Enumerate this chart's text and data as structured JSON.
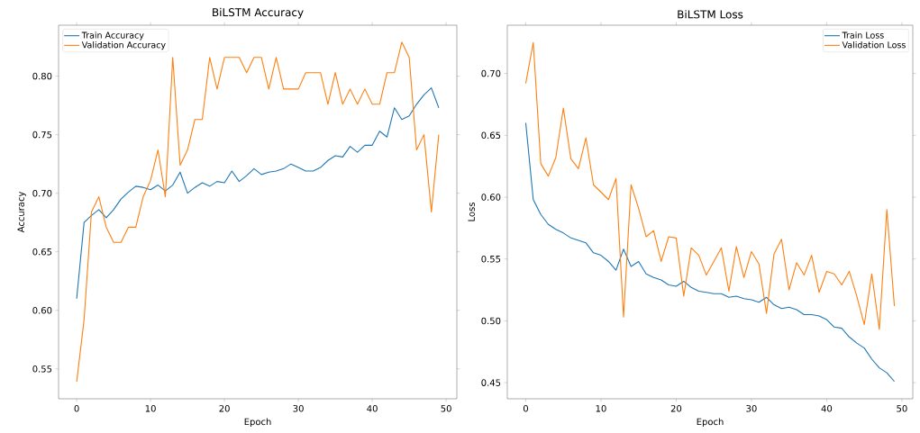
{
  "chart_data": [
    {
      "type": "line",
      "title": "BiLSTM Accuracy",
      "xlabel": "Epoch",
      "ylabel": "Accuracy",
      "legend": "top left",
      "grid": false,
      "x": [
        0,
        1,
        2,
        3,
        4,
        5,
        6,
        7,
        8,
        9,
        10,
        11,
        12,
        13,
        14,
        15,
        16,
        17,
        18,
        19,
        20,
        21,
        22,
        23,
        24,
        25,
        26,
        27,
        28,
        29,
        30,
        31,
        32,
        33,
        34,
        35,
        36,
        37,
        38,
        39,
        40,
        41,
        42,
        43,
        44,
        45,
        46,
        47,
        48,
        49
      ],
      "xlim": [
        -2.45,
        51.45
      ],
      "ylim": [
        0.5245,
        0.8435
      ],
      "xticks": [
        0,
        10,
        20,
        30,
        40,
        50
      ],
      "yticks": [
        {
          "value": 0.55,
          "label": "0.55"
        },
        {
          "value": 0.6,
          "label": "0.60"
        },
        {
          "value": 0.65,
          "label": "0.65"
        },
        {
          "value": 0.7,
          "label": "0.70"
        },
        {
          "value": 0.75,
          "label": "0.75"
        },
        {
          "value": 0.8,
          "label": "0.80"
        }
      ],
      "series": [
        {
          "name": "Train Accuracy",
          "color": "#1f77b4",
          "values": [
            0.61,
            0.675,
            0.681,
            0.686,
            0.679,
            0.686,
            0.695,
            0.701,
            0.706,
            0.705,
            0.703,
            0.707,
            0.702,
            0.707,
            0.718,
            0.7,
            0.705,
            0.709,
            0.706,
            0.71,
            0.709,
            0.719,
            0.71,
            0.715,
            0.721,
            0.716,
            0.718,
            0.719,
            0.721,
            0.725,
            0.722,
            0.719,
            0.719,
            0.722,
            0.728,
            0.732,
            0.731,
            0.74,
            0.735,
            0.741,
            0.741,
            0.753,
            0.748,
            0.773,
            0.763,
            0.766,
            0.776,
            0.784,
            0.79,
            0.773
          ]
        },
        {
          "name": "Validation Accuracy",
          "color": "#ff7f0e",
          "values": [
            0.539,
            0.592,
            0.684,
            0.697,
            0.671,
            0.658,
            0.658,
            0.671,
            0.671,
            0.697,
            0.711,
            0.737,
            0.697,
            0.816,
            0.724,
            0.737,
            0.763,
            0.763,
            0.816,
            0.789,
            0.816,
            0.816,
            0.816,
            0.803,
            0.816,
            0.816,
            0.789,
            0.816,
            0.789,
            0.789,
            0.789,
            0.803,
            0.803,
            0.803,
            0.776,
            0.803,
            0.776,
            0.789,
            0.776,
            0.789,
            0.776,
            0.776,
            0.803,
            0.803,
            0.829,
            0.816,
            0.737,
            0.75,
            0.684,
            0.75
          ]
        }
      ]
    },
    {
      "type": "line",
      "title": "BiLSTM Loss",
      "xlabel": "Epoch",
      "ylabel": "Loss",
      "legend": "top right",
      "grid": false,
      "x": [
        0,
        1,
        2,
        3,
        4,
        5,
        6,
        7,
        8,
        9,
        10,
        11,
        12,
        13,
        14,
        15,
        16,
        17,
        18,
        19,
        20,
        21,
        22,
        23,
        24,
        25,
        26,
        27,
        28,
        29,
        30,
        31,
        32,
        33,
        34,
        35,
        36,
        37,
        38,
        39,
        40,
        41,
        42,
        43,
        44,
        45,
        46,
        47,
        48,
        49
      ],
      "xlim": [
        -2.45,
        51.45
      ],
      "ylim": [
        0.437,
        0.739
      ],
      "xticks": [
        0,
        10,
        20,
        30,
        40,
        50
      ],
      "yticks": [
        0.45,
        {
          "value": 0.5,
          "label": "0.50"
        },
        0.55,
        {
          "value": 0.6,
          "label": "0.60"
        },
        0.65,
        {
          "value": 0.7,
          "label": "0.70"
        }
      ],
      "series": [
        {
          "name": "Train Loss",
          "color": "#1f77b4",
          "values": [
            0.66,
            0.598,
            0.586,
            0.578,
            0.574,
            0.571,
            0.567,
            0.565,
            0.563,
            0.555,
            0.553,
            0.548,
            0.541,
            0.558,
            0.544,
            0.548,
            0.538,
            0.535,
            0.533,
            0.529,
            0.528,
            0.532,
            0.527,
            0.524,
            0.523,
            0.522,
            0.522,
            0.519,
            0.52,
            0.518,
            0.517,
            0.515,
            0.519,
            0.513,
            0.51,
            0.511,
            0.509,
            0.505,
            0.505,
            0.504,
            0.501,
            0.495,
            0.494,
            0.487,
            0.482,
            0.478,
            0.469,
            0.462,
            0.458,
            0.451
          ]
        },
        {
          "name": "Validation Loss",
          "color": "#ff7f0e",
          "values": [
            0.692,
            0.725,
            0.627,
            0.617,
            0.632,
            0.672,
            0.631,
            0.623,
            0.648,
            0.61,
            0.604,
            0.598,
            0.615,
            0.503,
            0.61,
            0.591,
            0.568,
            0.573,
            0.548,
            0.568,
            0.567,
            0.52,
            0.559,
            0.553,
            0.537,
            0.548,
            0.559,
            0.524,
            0.56,
            0.535,
            0.556,
            0.546,
            0.506,
            0.554,
            0.566,
            0.525,
            0.547,
            0.537,
            0.553,
            0.523,
            0.54,
            0.538,
            0.529,
            0.54,
            0.52,
            0.497,
            0.538,
            0.493,
            0.59,
            0.512
          ]
        }
      ]
    }
  ]
}
